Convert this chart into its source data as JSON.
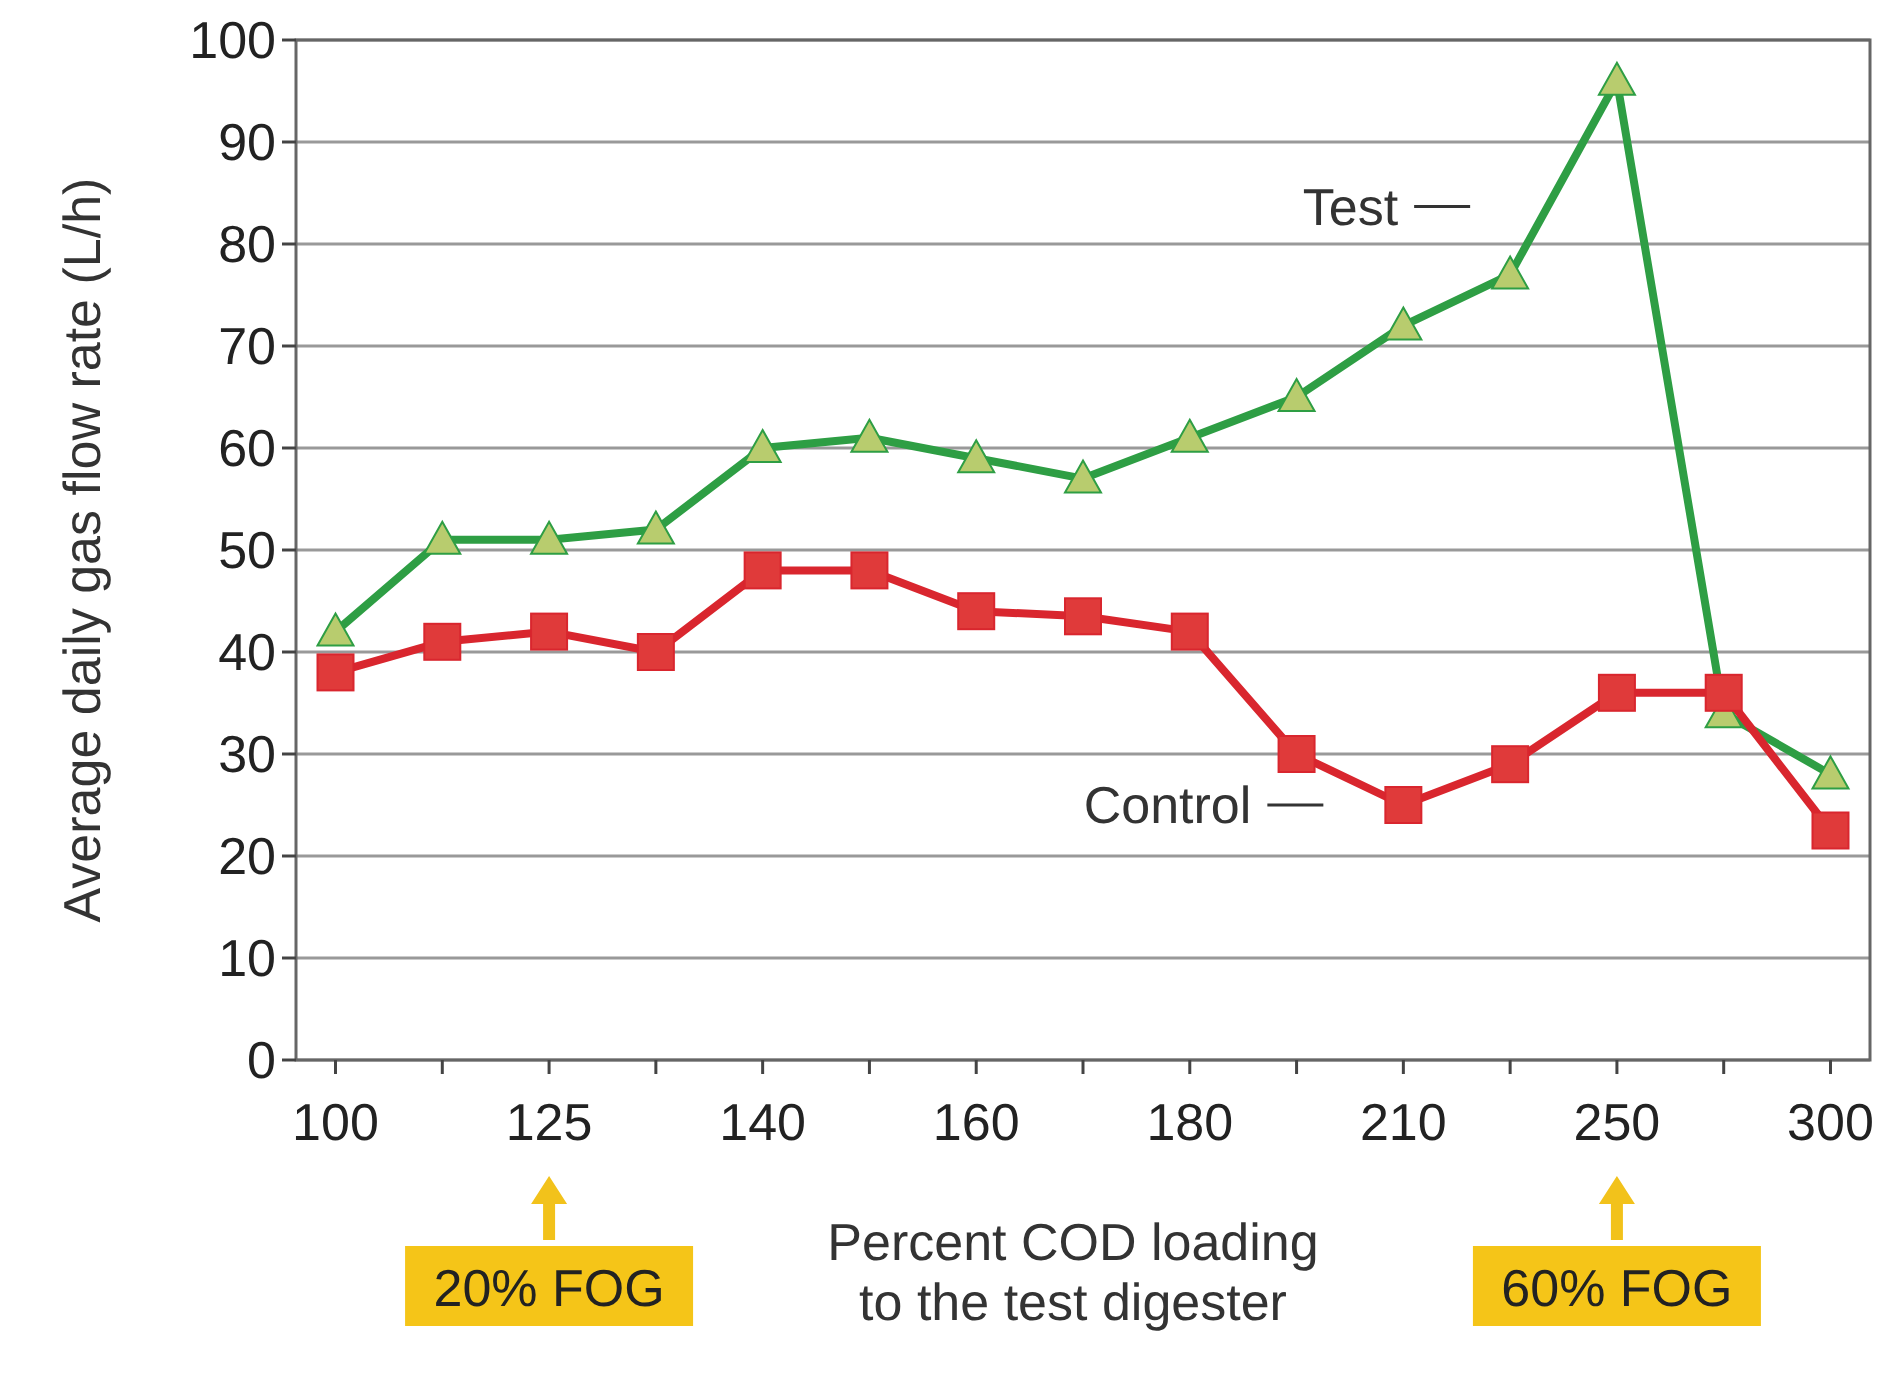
{
  "chart_data": {
    "type": "line",
    "xlabel": "Percent COD loading to the test digester",
    "ylabel": "Average daily gas flow rate (L/h)",
    "categories": [
      "100",
      null,
      "125",
      null,
      "140",
      null,
      "160",
      null,
      "180",
      null,
      "210",
      null,
      "250",
      null,
      "300"
    ],
    "ylim": [
      0,
      100
    ],
    "yticks": [
      0,
      10,
      20,
      30,
      40,
      50,
      60,
      70,
      80,
      90,
      100
    ],
    "grid": "y",
    "series": [
      {
        "name": "Test",
        "color": "#2e9e44",
        "marker": "triangle",
        "values": [
          42,
          51,
          51,
          52,
          60,
          61,
          59,
          57,
          61,
          65,
          72,
          77,
          96,
          34,
          28
        ]
      },
      {
        "name": "Control",
        "color": "#d9262e",
        "marker": "square",
        "values": [
          38,
          41,
          42,
          40,
          48,
          48,
          44,
          43.5,
          42,
          30,
          25,
          29,
          36,
          36,
          22.5
        ]
      }
    ],
    "annotations": [
      "20% FOG",
      "60% FOG"
    ]
  }
}
